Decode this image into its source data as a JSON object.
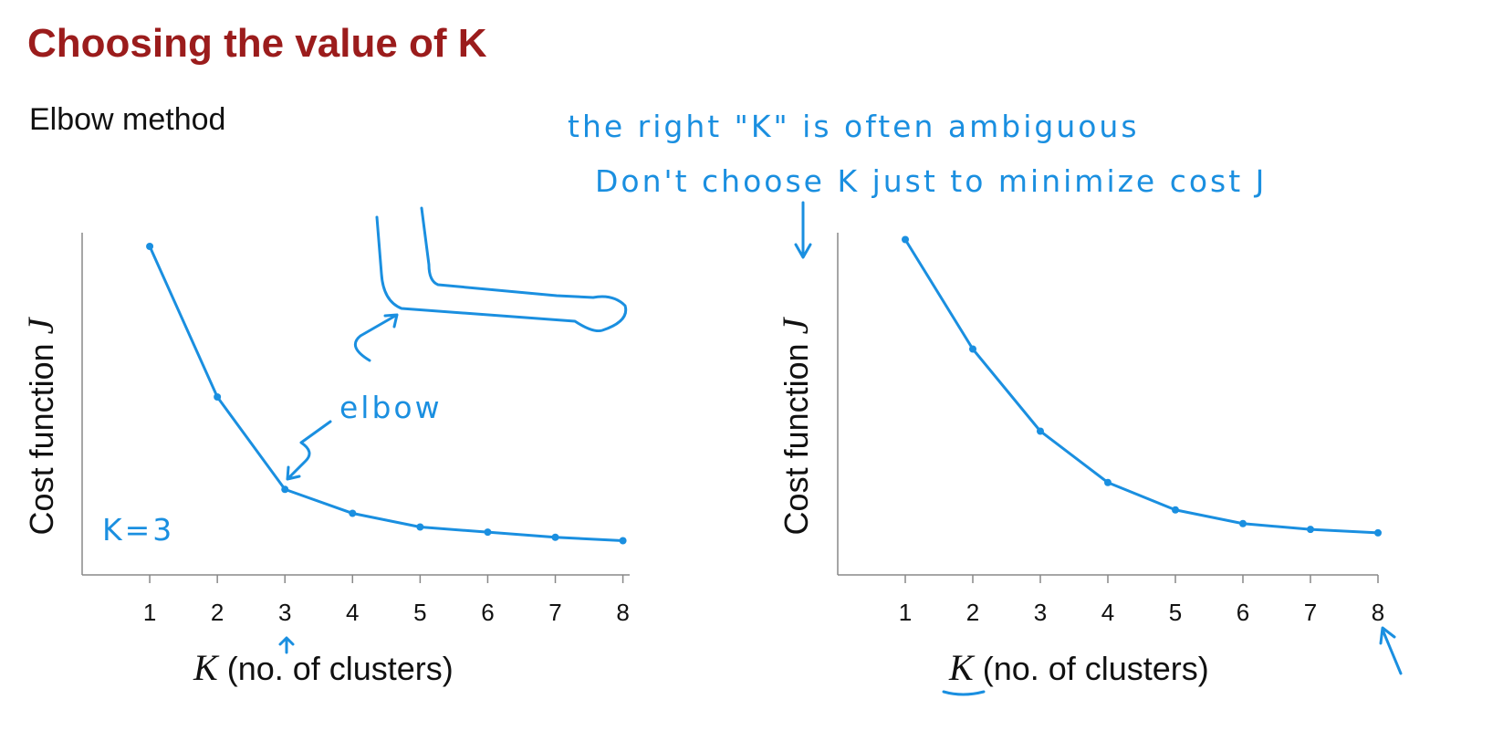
{
  "title": "Choosing the value of K",
  "subtitle": "Elbow method",
  "chart_data": [
    {
      "type": "line",
      "x": [
        1,
        2,
        3,
        4,
        5,
        6,
        7,
        8
      ],
      "values": [
        96,
        52,
        25,
        18,
        14,
        12.5,
        11,
        10
      ],
      "color": "#1a8fe0",
      "xlim": [
        0,
        8.1
      ],
      "ylim": [
        0,
        100
      ],
      "xticks": [
        1,
        2,
        3,
        4,
        5,
        6,
        7,
        8
      ],
      "xlabel": {
        "symbol": "K",
        "text": "(no. of clusters)"
      },
      "ylabel": {
        "text": "Cost function",
        "symbol": "J"
      },
      "annotations": [
        "elbow",
        "K=3"
      ]
    },
    {
      "type": "line",
      "x": [
        1,
        2,
        3,
        4,
        5,
        6,
        7,
        8
      ],
      "values": [
        98,
        66,
        42,
        27,
        19,
        15,
        13.3,
        12.3
      ],
      "color": "#1a8fe0",
      "xlim": [
        0,
        8
      ],
      "ylim": [
        0,
        100
      ],
      "xticks": [
        1,
        2,
        3,
        4,
        5,
        6,
        7,
        8
      ],
      "xlabel": {
        "symbol": "K",
        "text": "(no. of clusters)"
      },
      "ylabel": {
        "text": "Cost function",
        "symbol": "J"
      },
      "annotations": [
        "the right \"K\" is often ambiguous",
        "Don't choose K just to minimize cost J"
      ]
    }
  ]
}
